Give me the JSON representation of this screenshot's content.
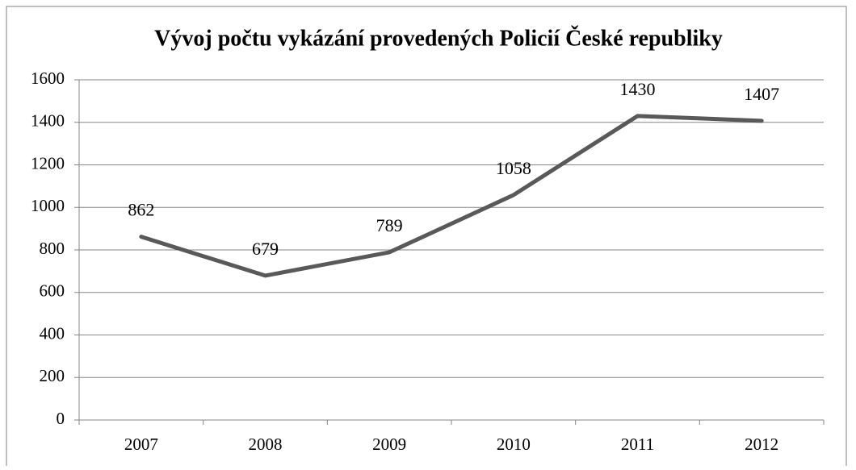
{
  "chart_data": {
    "type": "line",
    "title": "Vývoj počtu vykázání provedených Policií České republiky",
    "categories": [
      "2007",
      "2008",
      "2009",
      "2010",
      "2011",
      "2012"
    ],
    "values": [
      862,
      679,
      789,
      1058,
      1430,
      1407
    ],
    "color": "#595959",
    "ylim": [
      0,
      1600
    ],
    "yticks": [
      0,
      200,
      400,
      600,
      800,
      1000,
      1200,
      1400,
      1600
    ],
    "grid": true
  }
}
